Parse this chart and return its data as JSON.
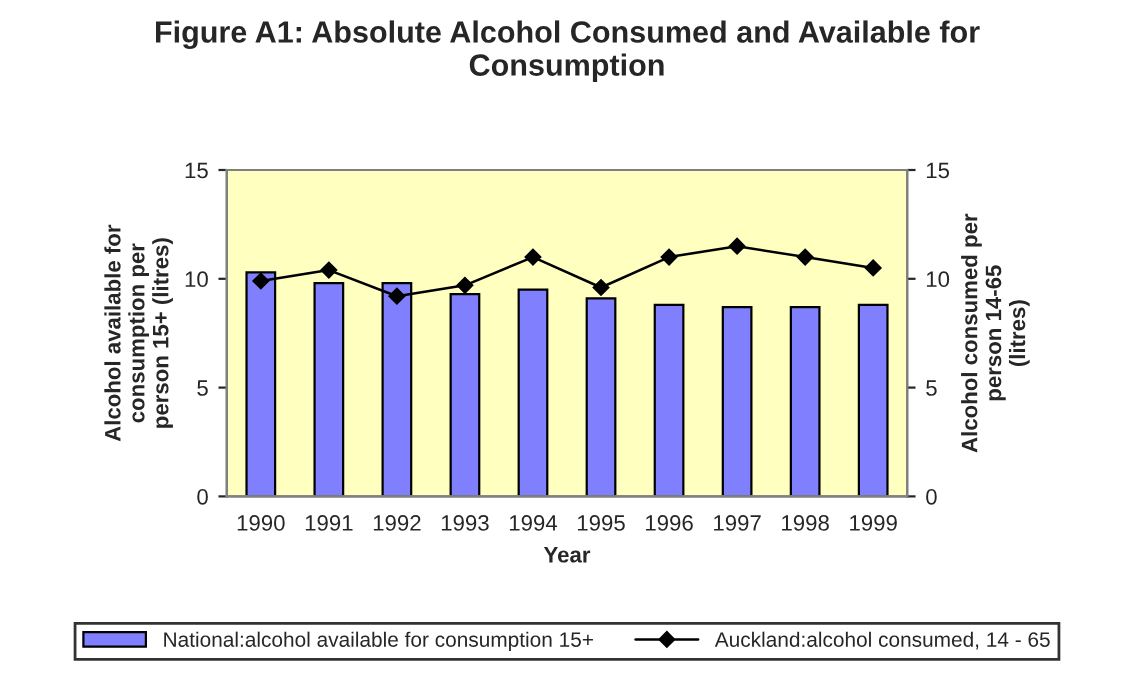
{
  "chart_data": {
    "type": "bar",
    "title": "Figure A1: Absolute Alcohol Consumed and Available for\nConsumption",
    "xlabel": "Year",
    "ylabel": "Alcohol available for\nconsumption per\nperson 15+ (litres)",
    "y2label": "Alcohol consumed per\nperson 14-65\n(litres)",
    "categories": [
      "1990",
      "1991",
      "1992",
      "1993",
      "1994",
      "1995",
      "1996",
      "1997",
      "1998",
      "1999"
    ],
    "series": [
      {
        "name": "National:alcohol available for consumption 15+",
        "color": "#8080ff",
        "values": [
          10.3,
          9.8,
          9.8,
          9.3,
          9.5,
          9.1,
          8.8,
          8.7,
          8.7,
          8.8
        ]
      },
      {
        "name": "Auckland:alcohol consumed, 14 - 65",
        "type": "line",
        "axis": "y2",
        "color": "#000000",
        "marker": "diamond",
        "values": [
          9.9,
          10.4,
          9.2,
          9.7,
          11.0,
          9.6,
          11.0,
          11.5,
          11.0,
          10.5
        ]
      }
    ],
    "ylim": [
      0,
      15
    ],
    "yticks": [
      0,
      5,
      10,
      15
    ],
    "y2lim": [
      0,
      15
    ],
    "y2ticks": [
      0,
      5,
      10,
      15
    ],
    "grid": false,
    "legend": "bottom"
  }
}
